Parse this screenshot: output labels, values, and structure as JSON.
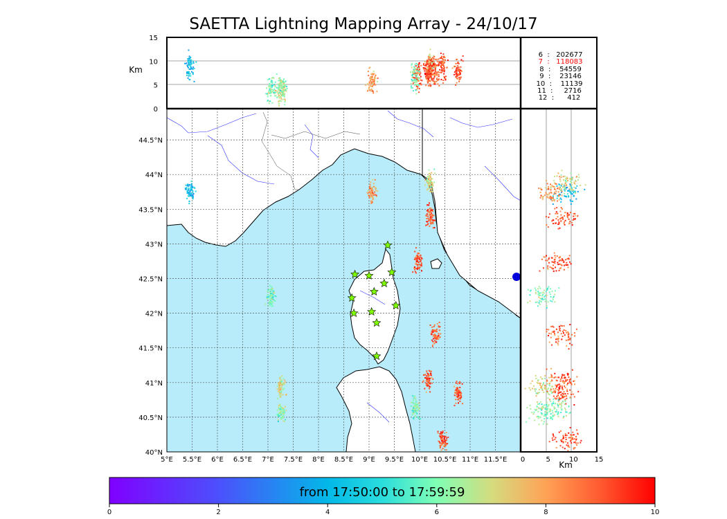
{
  "title": "SAETTA Lightning Mapping Array - 24/10/17",
  "map": {
    "lon_ticks": [
      "5°E",
      "5.5°E",
      "6°E",
      "6.5°E",
      "7°E",
      "7.5°E",
      "8°E",
      "8.5°E",
      "9°E",
      "9.5°E",
      "10°E",
      "10.5°E",
      "11°E",
      "11.5°E"
    ],
    "lat_ticks": [
      "40°N",
      "40.5°N",
      "41°N",
      "41.5°N",
      "42°N",
      "42.5°N",
      "43°N",
      "43.5°N",
      "44°N",
      "44.5°N"
    ],
    "lon_range": [
      5,
      12
    ],
    "lat_range": [
      40,
      44.95
    ],
    "sea_color": "#b8ecfa",
    "station_marker": "star-icon",
    "station_color": "#7fff00"
  },
  "altitude_panel": {
    "ylabel": "Km",
    "yticks": [
      "0",
      "5",
      "10",
      "15"
    ],
    "ylim": [
      0,
      15
    ]
  },
  "side_panel": {
    "xlabel": "Km",
    "xticks": [
      "0",
      "5",
      "10",
      "15"
    ],
    "xlim": [
      0,
      15
    ]
  },
  "counts": [
    {
      "label": " 6  :   202677",
      "color": "#000000"
    },
    {
      "label": " 7  :   118083",
      "color": "#ff0000"
    },
    {
      "label": " 8  :    54559",
      "color": "#000000"
    },
    {
      "label": " 9  :    23146",
      "color": "#000000"
    },
    {
      "label": "10  :    11139",
      "color": "#000000"
    },
    {
      "label": "11  :     2716",
      "color": "#000000"
    },
    {
      "label": "12  :      412",
      "color": "#000000"
    }
  ],
  "colorbar": {
    "label": "from 17:50:00 to 17:59:59",
    "ticks": [
      "0",
      "2",
      "4",
      "6",
      "8",
      "10"
    ],
    "range": [
      0,
      10
    ],
    "colormap": "rainbow"
  },
  "chart_data": {
    "type": "scatter",
    "title": "SAETTA Lightning Mapping Array - 24/10/17",
    "x_range_lon": [
      5,
      12
    ],
    "y_range_lat": [
      40,
      44.95
    ],
    "altitude_range_km": [
      0,
      15
    ],
    "color_scale": [
      0,
      10
    ],
    "source_clusters": [
      {
        "lon": 7.05,
        "lat": 42.25,
        "alt_km": 4,
        "time": 6
      },
      {
        "lon": 7.25,
        "lat": 40.95,
        "alt_km": 4,
        "time": 7
      },
      {
        "lon": 7.25,
        "lat": 40.58,
        "alt_km": 4,
        "time": 6
      },
      {
        "lon": 5.45,
        "lat": 43.75,
        "alt_km": 9,
        "time": 4
      },
      {
        "lon": 9.05,
        "lat": 43.75,
        "alt_km": 6,
        "time": 8
      },
      {
        "lon": 10.2,
        "lat": 43.9,
        "alt_km": 9,
        "time": 7
      },
      {
        "lon": 10.2,
        "lat": 43.4,
        "alt_km": 8,
        "time": 9
      },
      {
        "lon": 9.95,
        "lat": 42.75,
        "alt_km": 7,
        "time": 9
      },
      {
        "lon": 10.3,
        "lat": 41.7,
        "alt_km": 8,
        "time": 9
      },
      {
        "lon": 10.15,
        "lat": 41.05,
        "alt_km": 8,
        "time": 9
      },
      {
        "lon": 10.75,
        "lat": 40.85,
        "alt_km": 8,
        "time": 9
      },
      {
        "lon": 9.9,
        "lat": 40.65,
        "alt_km": 7,
        "time": 6
      },
      {
        "lon": 10.45,
        "lat": 40.18,
        "alt_km": 9,
        "time": 9
      }
    ]
  }
}
